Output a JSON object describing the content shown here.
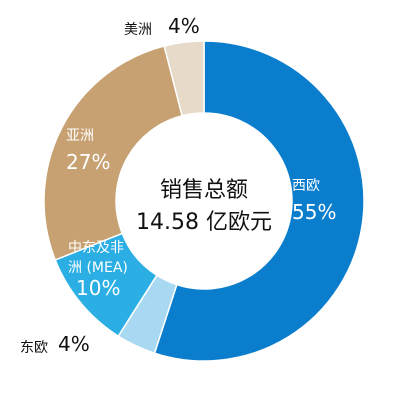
{
  "chart_data": {
    "type": "donut",
    "title": "销售总额",
    "subtitle": "14.58 亿欧元",
    "categories": [
      "西欧",
      "东欧",
      "中东及非\n洲 (MEA)",
      "亚洲",
      "美洲"
    ],
    "values": [
      55,
      4,
      10,
      27,
      4
    ],
    "value_labels": [
      "55%",
      "4%",
      "10%",
      "27%",
      "4%"
    ],
    "colors": [
      "#0a7dcc",
      "#a9d9f2",
      "#2aaee3",
      "#c7a172",
      "#e8dac8"
    ]
  }
}
